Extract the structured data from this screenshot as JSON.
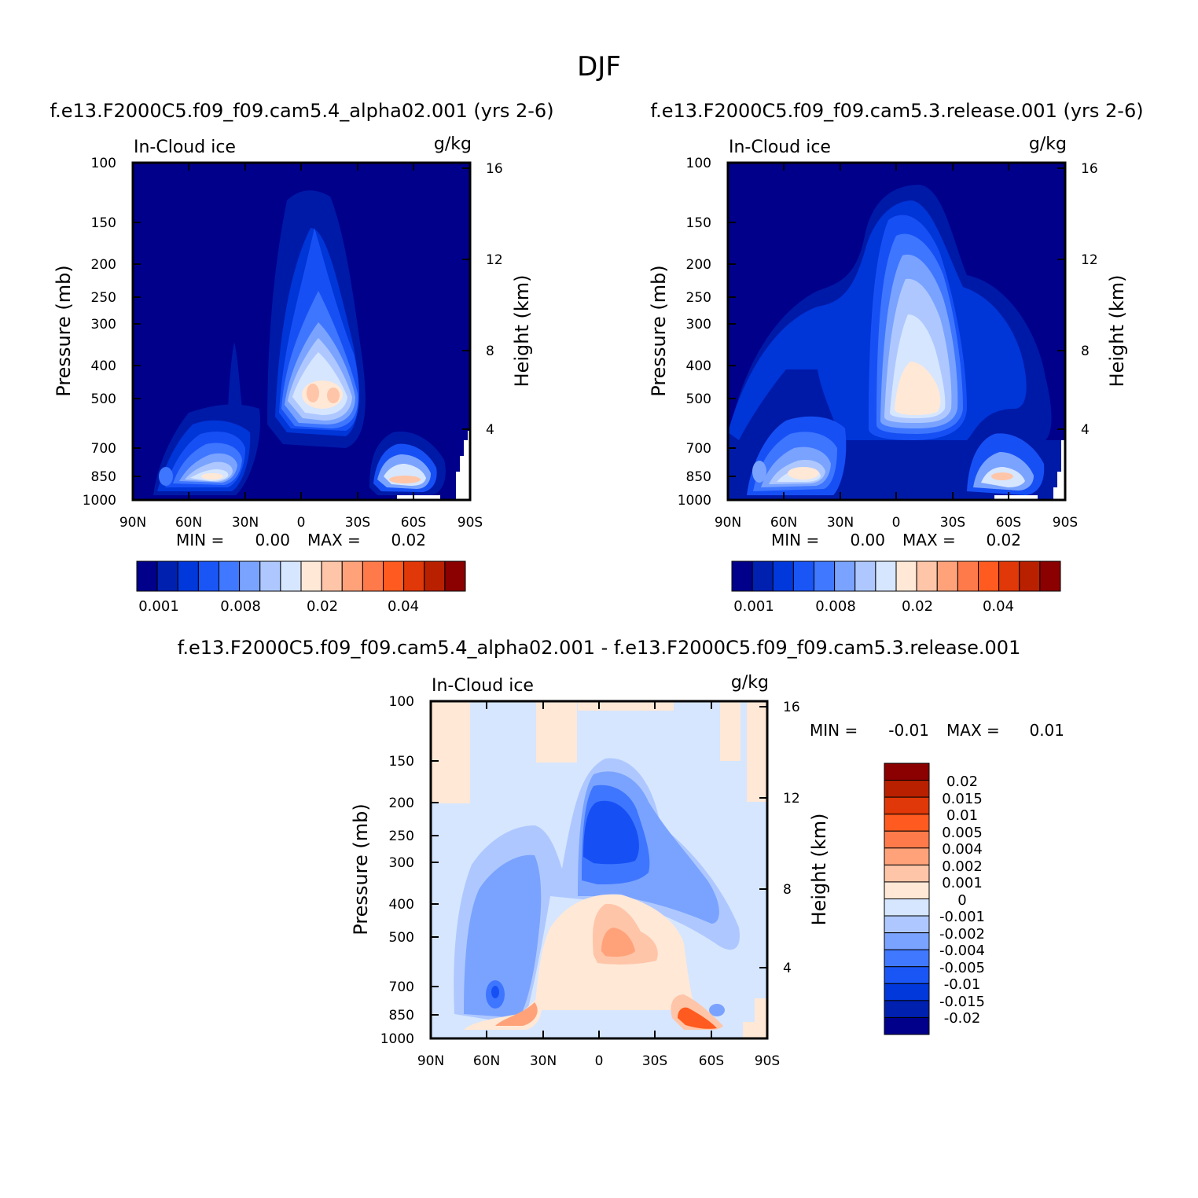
{
  "figure": {
    "title": "DJF"
  },
  "chart_data": [
    {
      "type": "heatmap",
      "title": "f.e13.F2000C5.f09_f09.cam5.4_alpha02.001 (yrs 2-6)",
      "subtitle_left": "In-Cloud ice",
      "units": "g/kg",
      "ylabel": "Pressure (mb)",
      "ylabel_right": "Height (km)",
      "x_ticks": [
        "90N",
        "60N",
        "30N",
        "0",
        "30S",
        "60S",
        "90S"
      ],
      "y_ticks": [
        "100",
        "150",
        "200",
        "250",
        "300",
        "400",
        "500",
        "700",
        "850",
        "1000"
      ],
      "y2_ticks": [
        "16",
        "12",
        "8",
        "4"
      ],
      "ylim": [
        1000,
        100
      ],
      "min_label": "MIN =",
      "min_value": "0.00",
      "max_label": "MAX =",
      "max_value": "0.02",
      "colorbar_labels": [
        "0.001",
        "0.008",
        "0.02",
        "0.04"
      ],
      "features": [
        {
          "lat": 3,
          "p": 500,
          "value": 0.02
        },
        {
          "lat": 52,
          "p": 820,
          "value": 0.02
        },
        {
          "lat": -65,
          "p": 830,
          "value": 0.012
        }
      ]
    },
    {
      "type": "heatmap",
      "title": "f.e13.F2000C5.f09_f09.cam5.3.release.001 (yrs 2-6)",
      "subtitle_left": "In-Cloud ice",
      "units": "g/kg",
      "ylabel": "Pressure (mb)",
      "ylabel_right": "Height (km)",
      "x_ticks": [
        "90N",
        "60N",
        "30N",
        "0",
        "30S",
        "60S",
        "90S"
      ],
      "y_ticks": [
        "100",
        "150",
        "200",
        "250",
        "300",
        "400",
        "500",
        "700",
        "850",
        "1000"
      ],
      "y2_ticks": [
        "16",
        "12",
        "8",
        "4"
      ],
      "ylim": [
        1000,
        100
      ],
      "min_label": "MIN =",
      "min_value": "0.00",
      "max_label": "MAX =",
      "max_value": "0.02",
      "colorbar_labels": [
        "0.001",
        "0.008",
        "0.02",
        "0.04"
      ],
      "features": [
        {
          "lat": -3,
          "p": 480,
          "value": 0.02
        },
        {
          "lat": 55,
          "p": 820,
          "value": 0.02
        },
        {
          "lat": -62,
          "p": 830,
          "value": 0.012
        }
      ]
    },
    {
      "type": "heatmap",
      "title": "f.e13.F2000C5.f09_f09.cam5.4_alpha02.001 - f.e13.F2000C5.f09_f09.cam5.3.release.001",
      "subtitle_left": "In-Cloud ice",
      "units": "g/kg",
      "ylabel": "Pressure (mb)",
      "ylabel_right": "Height (km)",
      "x_ticks": [
        "90N",
        "60N",
        "30N",
        "0",
        "30S",
        "60S",
        "90S"
      ],
      "y_ticks": [
        "100",
        "150",
        "200",
        "250",
        "300",
        "400",
        "500",
        "700",
        "850",
        "1000"
      ],
      "y2_ticks": [
        "16",
        "12",
        "8",
        "4"
      ],
      "ylim": [
        1000,
        100
      ],
      "min_label": "MIN =",
      "min_value": "-0.01",
      "max_label": "MAX =",
      "max_value": "0.01",
      "colorbar_labels": [
        "0.02",
        "0.015",
        "0.01",
        "0.005",
        "0.004",
        "0.002",
        "0.001",
        "0",
        "-0.001",
        "-0.002",
        "-0.004",
        "-0.005",
        "-0.01",
        "-0.015",
        "-0.02"
      ],
      "features": [
        {
          "lat": -5,
          "p": 250,
          "value": -0.01
        },
        {
          "lat": 55,
          "p": 750,
          "value": -0.01
        },
        {
          "lat": 0,
          "p": 500,
          "value": 0.005
        },
        {
          "lat": -60,
          "p": 900,
          "value": 0.01
        }
      ]
    }
  ]
}
